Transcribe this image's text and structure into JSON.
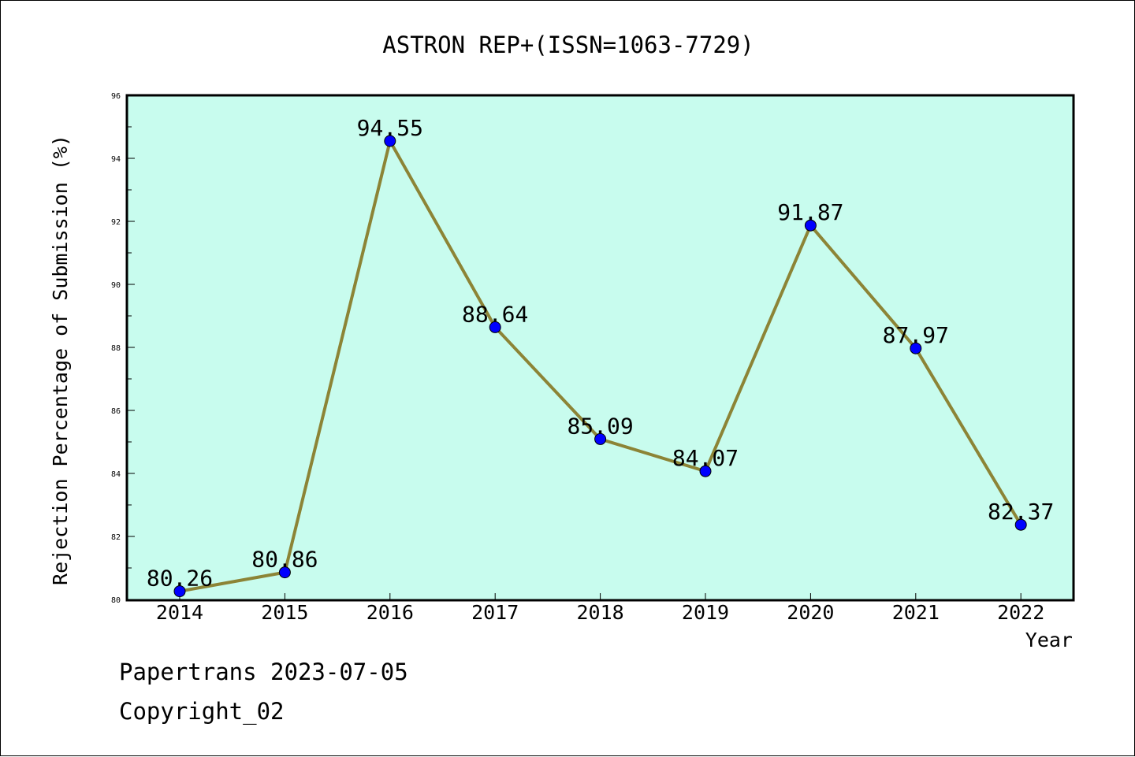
{
  "chart_data": {
    "type": "line",
    "title": "ASTRON REP+(ISSN=1063-7729)",
    "xlabel": "Year",
    "ylabel": "Rejection Percentage of Submission (%)",
    "categories": [
      "2014",
      "2015",
      "2016",
      "2017",
      "2018",
      "2019",
      "2020",
      "2021",
      "2022"
    ],
    "values": [
      80.26,
      80.86,
      94.55,
      88.64,
      85.09,
      84.07,
      91.87,
      87.97,
      82.37
    ],
    "data_labels": [
      "80.26",
      "80.86",
      "94.55",
      "88.64",
      "85.09",
      "84.07",
      "91.87",
      "87.97",
      "82.37"
    ],
    "ylim": [
      80,
      96
    ],
    "yticks": [
      80,
      82,
      84,
      86,
      88,
      90,
      92,
      94,
      96
    ],
    "grid": false,
    "colors": {
      "plot_background": "#c8fcee",
      "line": "#8c8436",
      "marker": "#0000ff"
    }
  },
  "footer": {
    "line1": "Papertrans 2023-07-05",
    "line2": "Copyright_02"
  }
}
